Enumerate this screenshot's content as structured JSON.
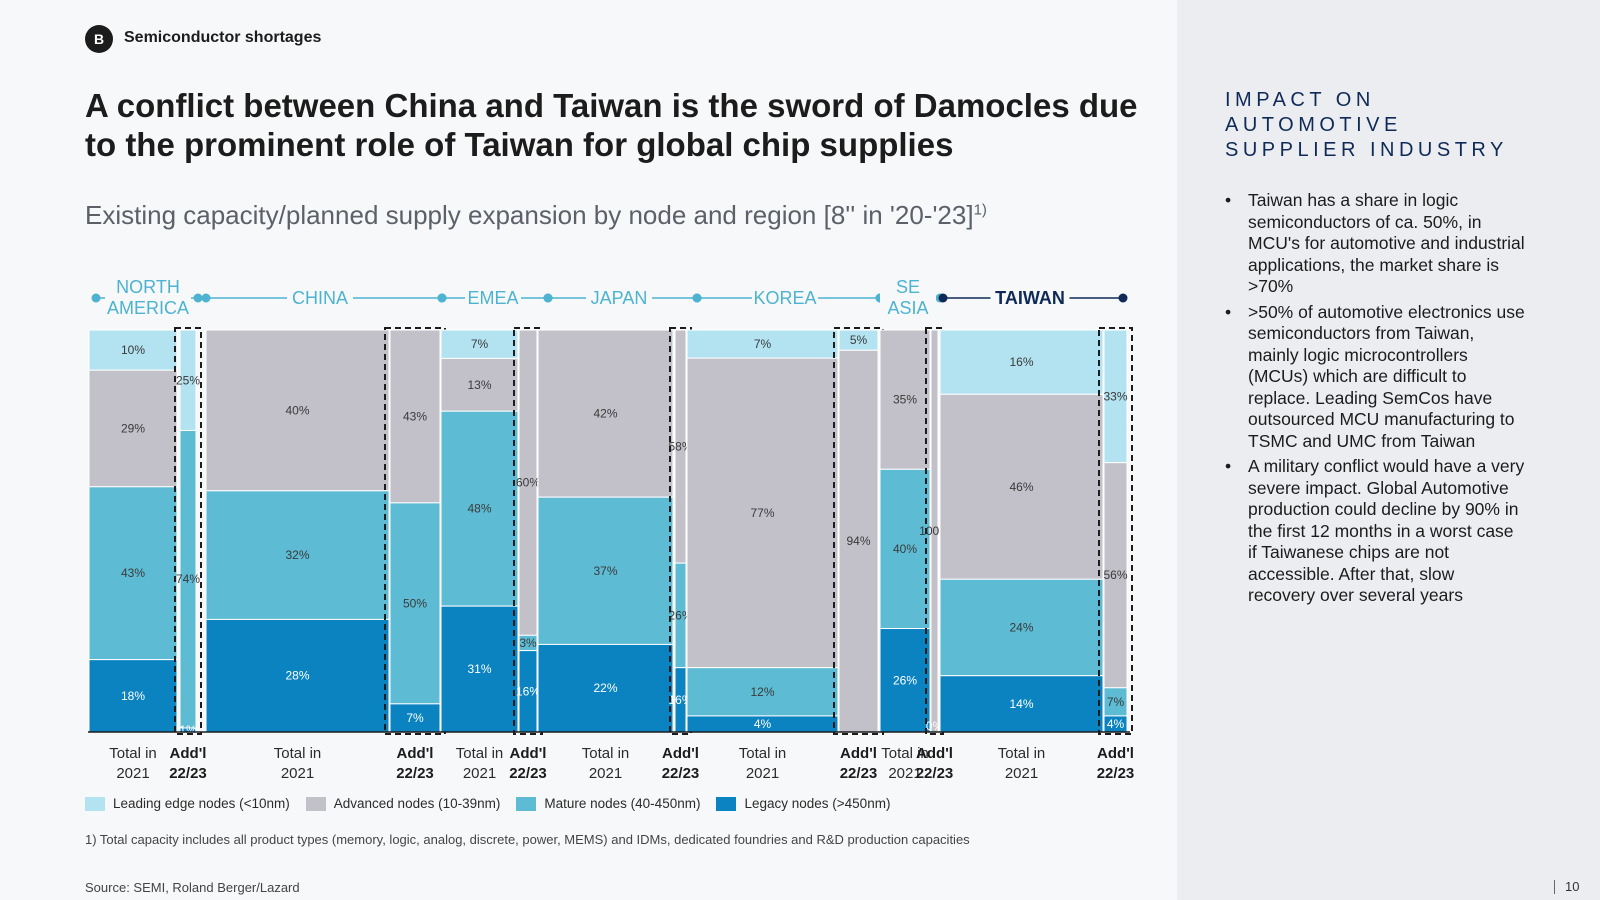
{
  "header": {
    "badge": "B",
    "section": "Semiconductor shortages",
    "title": "A conflict between China and Taiwan is the sword of Damocles due to the prominent role of Taiwan for global chip supplies"
  },
  "chart_data": {
    "type": "bar",
    "stacking": "percent-stacked, variable width (mekko)",
    "title": "Existing capacity/planned supply expansion by node and region [8'' in '20-'23]",
    "title_superscript": "1)",
    "series": [
      {
        "name": "Leading edge nodes (<10nm)",
        "color": "#b3e3f0"
      },
      {
        "name": "Advanced nodes (10-39nm)",
        "color": "#c2c0c9"
      },
      {
        "name": "Mature nodes (40-450nm)",
        "color": "#5dbbd3"
      },
      {
        "name": "Legacy nodes (>450nm)",
        "color": "#0b83c1"
      }
    ],
    "regions": [
      {
        "name": "NORTH AMERICA",
        "total": {
          "label": "Total in 2021",
          "values": [
            10,
            29,
            43,
            18
          ]
        },
        "addl": {
          "label": "Add'l 22/23",
          "values": [
            25,
            0,
            74,
            1
          ]
        },
        "value_labels": {
          "total": [
            "10%",
            "29%",
            "43%",
            "18%"
          ],
          "addl": [
            "25%",
            "",
            "74%",
            "1%"
          ]
        }
      },
      {
        "name": "CHINA",
        "total": {
          "label": "Total in 2021",
          "values": [
            0,
            40,
            32,
            28
          ]
        },
        "addl": {
          "label": "Add'l 22/23",
          "values": [
            0,
            43,
            50,
            7
          ]
        },
        "value_labels": {
          "total": [
            "",
            "40%",
            "32%",
            "28%"
          ],
          "addl": [
            "",
            "43%",
            "50%",
            "7%"
          ]
        }
      },
      {
        "name": "EMEA",
        "total": {
          "label": "Total in 2021",
          "values": [
            7,
            13,
            48,
            31
          ]
        },
        "addl": {
          "label": "Add'l 22/23",
          "values": [
            0,
            60,
            3,
            16
          ]
        },
        "value_labels": {
          "total": [
            "7%",
            "13%",
            "48%",
            "31%"
          ],
          "addl": [
            "",
            "60%",
            "3%",
            "16%"
          ]
        }
      },
      {
        "name": "JAPAN",
        "total": {
          "label": "Total in 2021",
          "values": [
            0,
            42,
            37,
            22
          ]
        },
        "addl": {
          "label": "Add'l 22/23",
          "values": [
            0,
            58,
            26,
            16
          ]
        },
        "value_labels": {
          "total": [
            "",
            "42%",
            "37%",
            "22%"
          ],
          "addl": [
            "",
            "58%",
            "26%",
            "16%"
          ]
        }
      },
      {
        "name": "KOREA",
        "total": {
          "label": "Total in 2021",
          "values": [
            7,
            77,
            12,
            4
          ]
        },
        "addl": {
          "label": "Add'l 22/23",
          "values": [
            5,
            94,
            0,
            0
          ]
        },
        "value_labels": {
          "total": [
            "7%",
            "77%",
            "12%",
            "4%"
          ],
          "addl": [
            "5%",
            "94%",
            "",
            ""
          ]
        }
      },
      {
        "name": "SE ASIA",
        "total": {
          "label": "Total in 2021",
          "values": [
            0,
            35,
            40,
            26
          ]
        },
        "addl": {
          "label": "Add'l 22/23",
          "values": [
            0,
            100,
            0,
            0
          ]
        },
        "value_labels": {
          "total": [
            "",
            "35%",
            "40%",
            "26%"
          ],
          "addl": [
            "",
            "100%",
            "",
            "0%"
          ]
        }
      },
      {
        "name": "TAIWAN",
        "total": {
          "label": "Total in 2021",
          "values": [
            16,
            46,
            24,
            14
          ]
        },
        "addl": {
          "label": "Add'l 22/23",
          "values": [
            33,
            56,
            7,
            4
          ]
        },
        "value_labels": {
          "total": [
            "16%",
            "46%",
            "24%",
            "14%"
          ],
          "addl": [
            "33%",
            "56%",
            "7%",
            "4%"
          ]
        }
      }
    ],
    "highlighted_region": "TAIWAN",
    "legend_position": "bottom-left"
  },
  "footnote": "1) Total capacity includes all product types (memory, logic, analog, discrete, power, MEMS) and IDMs, dedicated foundries and R&D production capacities",
  "source": "Source: SEMI, Roland Berger/Lazard",
  "sidebar": {
    "title_lines": [
      "IMPACT ON",
      "AUTOMOTIVE",
      "SUPPLIER INDUSTRY"
    ],
    "bullets": [
      "Taiwan has a share in logic semiconductors of ca. 50%, in MCU's for automotive and industrial applications, the market share is >70%",
      ">50% of automotive electronics use semiconductors from Taiwan, mainly logic microcontrollers (MCUs) which are difficult to replace. Leading SemCos have outsourced MCU manufacturing to TSMC and UMC from Taiwan",
      "A military conflict would have a very severe impact. Global Automotive production could decline by 90% in the first 12 months in a worst case if Taiwanese chips are not accessible. After that, slow recovery over several years"
    ]
  },
  "page_number": "10",
  "colors": {
    "accent_dark": "#0f2a57",
    "region_line": "#4db3d1",
    "highlight_line": "#0f2a57"
  }
}
